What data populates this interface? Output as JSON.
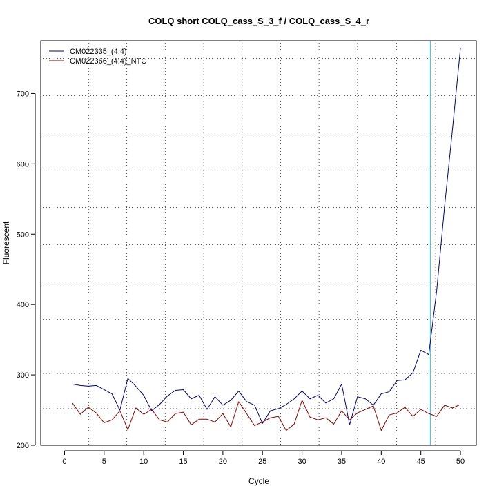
{
  "chart_data": {
    "type": "line",
    "title": "COLQ short COLQ_cass_S_3_f / COLQ_cass_S_4_r",
    "xlabel": "Cycle",
    "ylabel": "Fluorescent",
    "xlim": [
      -3,
      52
    ],
    "ylim": [
      200,
      775
    ],
    "xticks": [
      0,
      5,
      10,
      15,
      20,
      25,
      30,
      35,
      40,
      45,
      50
    ],
    "yticks": [
      200,
      300,
      400,
      500,
      600,
      700
    ],
    "x_grid": [
      3.07,
      7.86,
      12.72,
      17.58,
      22.43,
      27.29,
      32.14,
      37,
      41.93,
      46.86
    ],
    "y_grid": [
      252,
      302,
      379,
      432,
      485,
      538,
      591,
      644,
      697,
      750
    ],
    "grid": true,
    "threshold_cycle": 46.2,
    "legend_position": "top-left",
    "x": [
      1,
      2,
      3,
      4,
      5,
      6,
      7,
      8,
      9,
      10,
      11,
      12,
      13,
      14,
      15,
      16,
      17,
      18,
      19,
      20,
      21,
      22,
      23,
      24,
      25,
      26,
      27,
      28,
      29,
      30,
      31,
      32,
      33,
      34,
      35,
      36,
      37,
      38,
      39,
      40,
      41,
      42,
      43,
      44,
      45,
      46,
      47,
      48,
      49,
      50
    ],
    "series": [
      {
        "name": "CM022335_(4:4)",
        "color": "#000080",
        "values": [
          287,
          285,
          284,
          285,
          279,
          273,
          250,
          295,
          284,
          271,
          249,
          258,
          270,
          278,
          279,
          266,
          271,
          251,
          269,
          257,
          264,
          277,
          262,
          257,
          231,
          249,
          252,
          258,
          266,
          277,
          266,
          271,
          260,
          266,
          287,
          229,
          269,
          266,
          257,
          273,
          276,
          292,
          293,
          303,
          335,
          329,
          420,
          540,
          650,
          765
        ]
      },
      {
        "name": "CM022366_(4:4)_NTC",
        "color": "#8b0000",
        "values": [
          260,
          244,
          254,
          246,
          232,
          236,
          249,
          222,
          253,
          244,
          251,
          236,
          233,
          245,
          247,
          229,
          237,
          237,
          233,
          245,
          226,
          262,
          245,
          228,
          233,
          239,
          241,
          221,
          230,
          264,
          240,
          236,
          239,
          230,
          249,
          236,
          246,
          251,
          256,
          221,
          243,
          246,
          254,
          241,
          251,
          245,
          241,
          257,
          253,
          258
        ]
      }
    ]
  }
}
